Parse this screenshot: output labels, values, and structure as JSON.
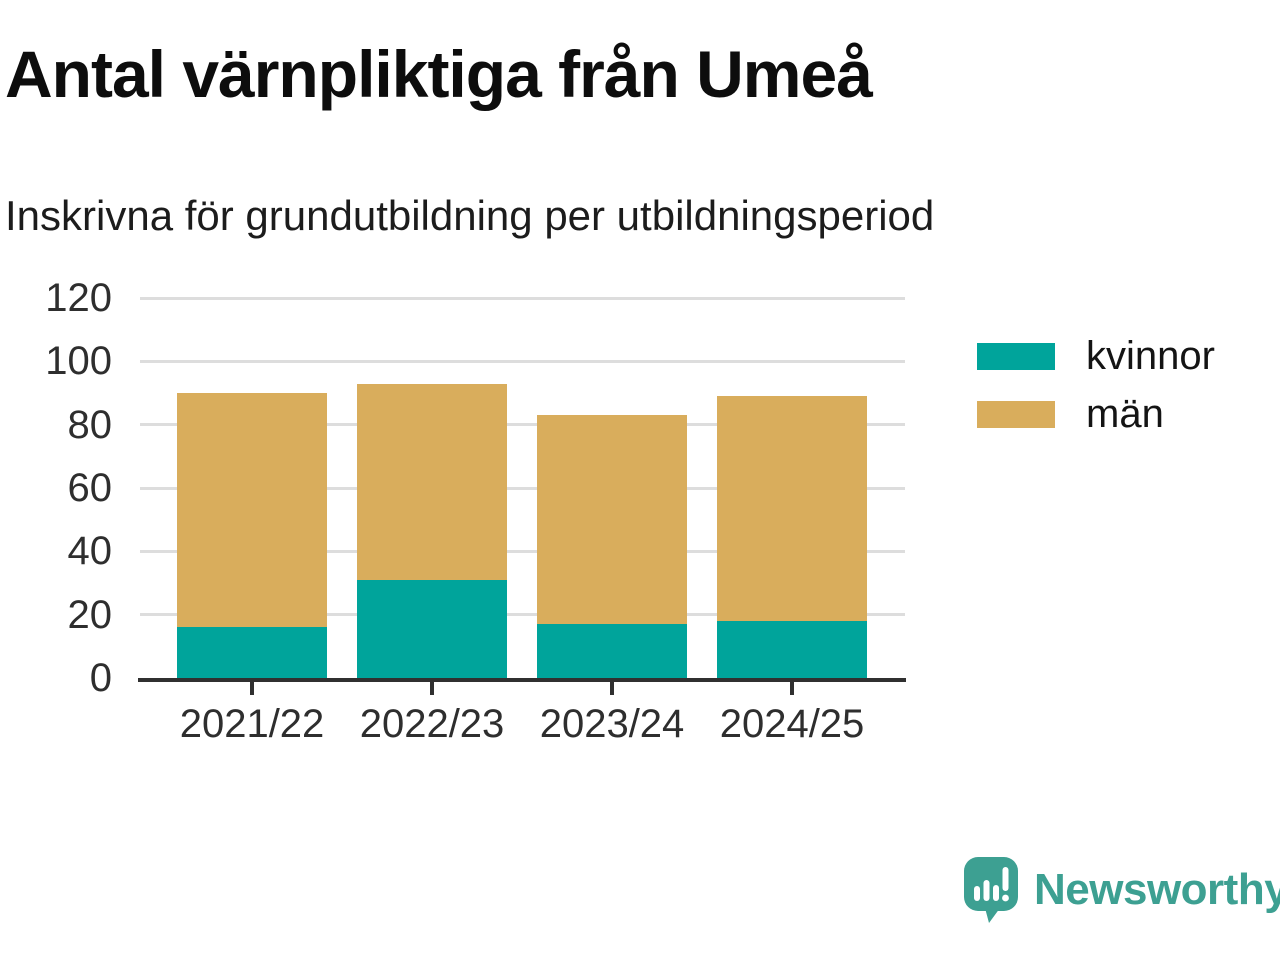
{
  "header": {
    "title": "Antal värnpliktiga från Umeå",
    "subtitle": "Inskrivna för grundutbildning per utbildningsperiod"
  },
  "chart_data": {
    "type": "bar",
    "stacked": true,
    "categories": [
      "2021/22",
      "2022/23",
      "2023/24",
      "2024/25"
    ],
    "series": [
      {
        "name": "kvinnor",
        "color": "#00A49B",
        "values": [
          16,
          31,
          17,
          18
        ]
      },
      {
        "name": "män",
        "color": "#D9AD5C",
        "values": [
          74,
          62,
          66,
          71
        ]
      }
    ],
    "title": "Antal värnpliktiga från Umeå",
    "subtitle": "Inskrivna för grundutbildning per utbildningsperiod",
    "xlabel": "",
    "ylabel": "",
    "ylim": [
      0,
      120
    ],
    "yticks": [
      0,
      20,
      40,
      60,
      80,
      100,
      120
    ],
    "grid": "horizontal",
    "legend_position": "right"
  },
  "footer": {
    "brand": "Newsworthy",
    "brand_color": "#3DA092"
  },
  "colors": {
    "axis_text": "#2E2E2E",
    "gridline": "#DDDDDD",
    "axis_line": "#303030",
    "background": "#FFFFFF"
  }
}
